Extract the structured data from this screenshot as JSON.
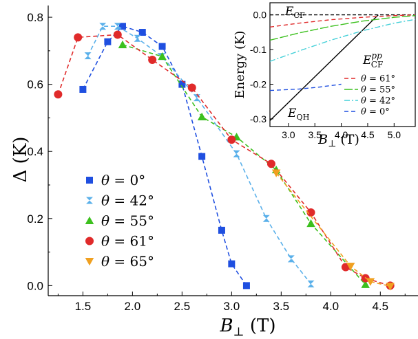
{
  "chart_data": [
    {
      "type": "scatter",
      "role": "main",
      "title": "",
      "xlabel": {
        "symbol": "B",
        "sub": "⊥",
        "unit": "(T)"
      },
      "ylabel": {
        "symbol": "Δ",
        "unit": "(K)"
      },
      "xlim": [
        1.15,
        4.88
      ],
      "ylim": [
        -0.03,
        0.835
      ],
      "xticks": [
        1.5,
        2.0,
        2.5,
        3.0,
        3.5,
        4.0,
        4.5
      ],
      "xtick_labels": [
        "1.5",
        "2.0",
        "2.5",
        "3.0",
        "3.5",
        "4.0",
        "4.5"
      ],
      "yticks": [
        0.0,
        0.2,
        0.4,
        0.6,
        0.8
      ],
      "ytick_labels": [
        "0.0",
        "0.2",
        "0.4",
        "0.6",
        "0.8"
      ],
      "grid": false,
      "legend_position": "lower-left",
      "series": [
        {
          "name": "θ = 0°",
          "theta": "0",
          "marker": "square",
          "color": "#1f4fe0",
          "x": [
            1.5,
            1.75,
            1.9,
            2.1,
            2.3,
            2.5,
            2.7,
            2.9,
            3.0,
            3.15
          ],
          "y": [
            0.585,
            0.727,
            0.773,
            0.755,
            0.713,
            0.6,
            0.385,
            0.165,
            0.065,
            0.0
          ]
        },
        {
          "name": "θ = 42°",
          "theta": "42",
          "marker": "bowtie",
          "color": "#5ab0ea",
          "x": [
            1.55,
            1.7,
            1.85,
            2.05,
            2.3,
            2.65,
            3.05,
            3.35,
            3.6,
            3.8
          ],
          "y": [
            0.685,
            0.773,
            0.773,
            0.737,
            0.683,
            0.56,
            0.393,
            0.2,
            0.08,
            0.005
          ]
        },
        {
          "name": "θ = 55°",
          "theta": "55",
          "marker": "triangle-up",
          "color": "#3cc01e",
          "x": [
            1.9,
            2.3,
            2.7,
            3.05,
            3.45,
            3.8,
            4.35
          ],
          "y": [
            0.718,
            0.683,
            0.503,
            0.443,
            0.345,
            0.185,
            0.003
          ]
        },
        {
          "name": "θ = 61°",
          "theta": "61",
          "marker": "circle",
          "color": "#e02a2a",
          "x": [
            1.25,
            1.45,
            1.85,
            2.2,
            2.6,
            3.0,
            3.4,
            3.8,
            4.15,
            4.35,
            4.6
          ],
          "y": [
            0.57,
            0.74,
            0.748,
            0.673,
            0.59,
            0.435,
            0.363,
            0.218,
            0.055,
            0.022,
            0.0
          ]
        },
        {
          "name": "θ = 65°",
          "theta": "65",
          "marker": "triangle-down",
          "color": "#f0a020",
          "x": [
            3.45,
            4.2,
            4.4,
            4.6
          ],
          "y": [
            0.336,
            0.058,
            0.012,
            -0.002
          ]
        }
      ]
    },
    {
      "type": "line",
      "role": "inset",
      "xlabel": {
        "symbol": "B",
        "sub": "⊥",
        "unit": "(T)"
      },
      "ylabel": {
        "text": "Energy (K)"
      },
      "xlim": [
        2.65,
        5.4
      ],
      "ylim": [
        -0.322,
        0.035
      ],
      "xticks": [
        3.0,
        3.5,
        4.0,
        4.5,
        5.0
      ],
      "xtick_labels": [
        "3.0",
        "3.5",
        "4.0",
        "4.5",
        "5.0"
      ],
      "yticks": [
        0.0,
        -0.1,
        -0.2,
        -0.3
      ],
      "ytick_labels": [
        "0.0",
        "-0.1",
        "-0.2",
        "-0.3"
      ],
      "legend_title": {
        "symbol": "E",
        "sub": "CF",
        "sup": "pp"
      },
      "legend_position": "right",
      "annotations": [
        {
          "symbol": "E",
          "sub": "CF"
        },
        {
          "symbol": "E",
          "sub": "QH"
        }
      ],
      "series": [
        {
          "name": "E_CF",
          "legend": false,
          "color": "#000000",
          "dash": "5,3",
          "x": [
            2.65,
            5.4
          ],
          "y": [
            0.0,
            0.0
          ]
        },
        {
          "name": "E_QH",
          "legend": false,
          "color": "#000000",
          "dash": "",
          "x": [
            2.65,
            4.7
          ],
          "y": [
            -0.305,
            0.0
          ]
        },
        {
          "name": "θ = 61°",
          "theta": "61",
          "legend": true,
          "color": "#e02a2a",
          "dash": "6,4",
          "x": [
            2.65,
            3.2,
            3.8,
            4.4,
            5.0,
            5.4
          ],
          "y": [
            -0.035,
            -0.024,
            -0.014,
            -0.007,
            -0.002,
            0.0
          ]
        },
        {
          "name": "θ = 55°",
          "theta": "55",
          "legend": true,
          "color": "#3cc01e",
          "dash": "12,3",
          "x": [
            2.65,
            3.2,
            3.8,
            4.4,
            5.0,
            5.4
          ],
          "y": [
            -0.073,
            -0.052,
            -0.033,
            -0.018,
            -0.007,
            -0.002
          ]
        },
        {
          "name": "θ = 42°",
          "theta": "42",
          "legend": true,
          "color": "#43d0d8",
          "dash": "8,3,2,3",
          "x": [
            2.65,
            3.2,
            3.8,
            4.4,
            5.0,
            5.4
          ],
          "y": [
            -0.134,
            -0.104,
            -0.073,
            -0.046,
            -0.024,
            -0.013
          ]
        },
        {
          "name": "θ = 0°",
          "theta": "0",
          "legend": true,
          "color": "#1f4fe0",
          "dash": "6,4",
          "x": [
            2.65,
            3.2,
            3.6,
            4.0
          ],
          "y": [
            -0.218,
            -0.214,
            -0.208,
            -0.2
          ]
        }
      ]
    }
  ]
}
